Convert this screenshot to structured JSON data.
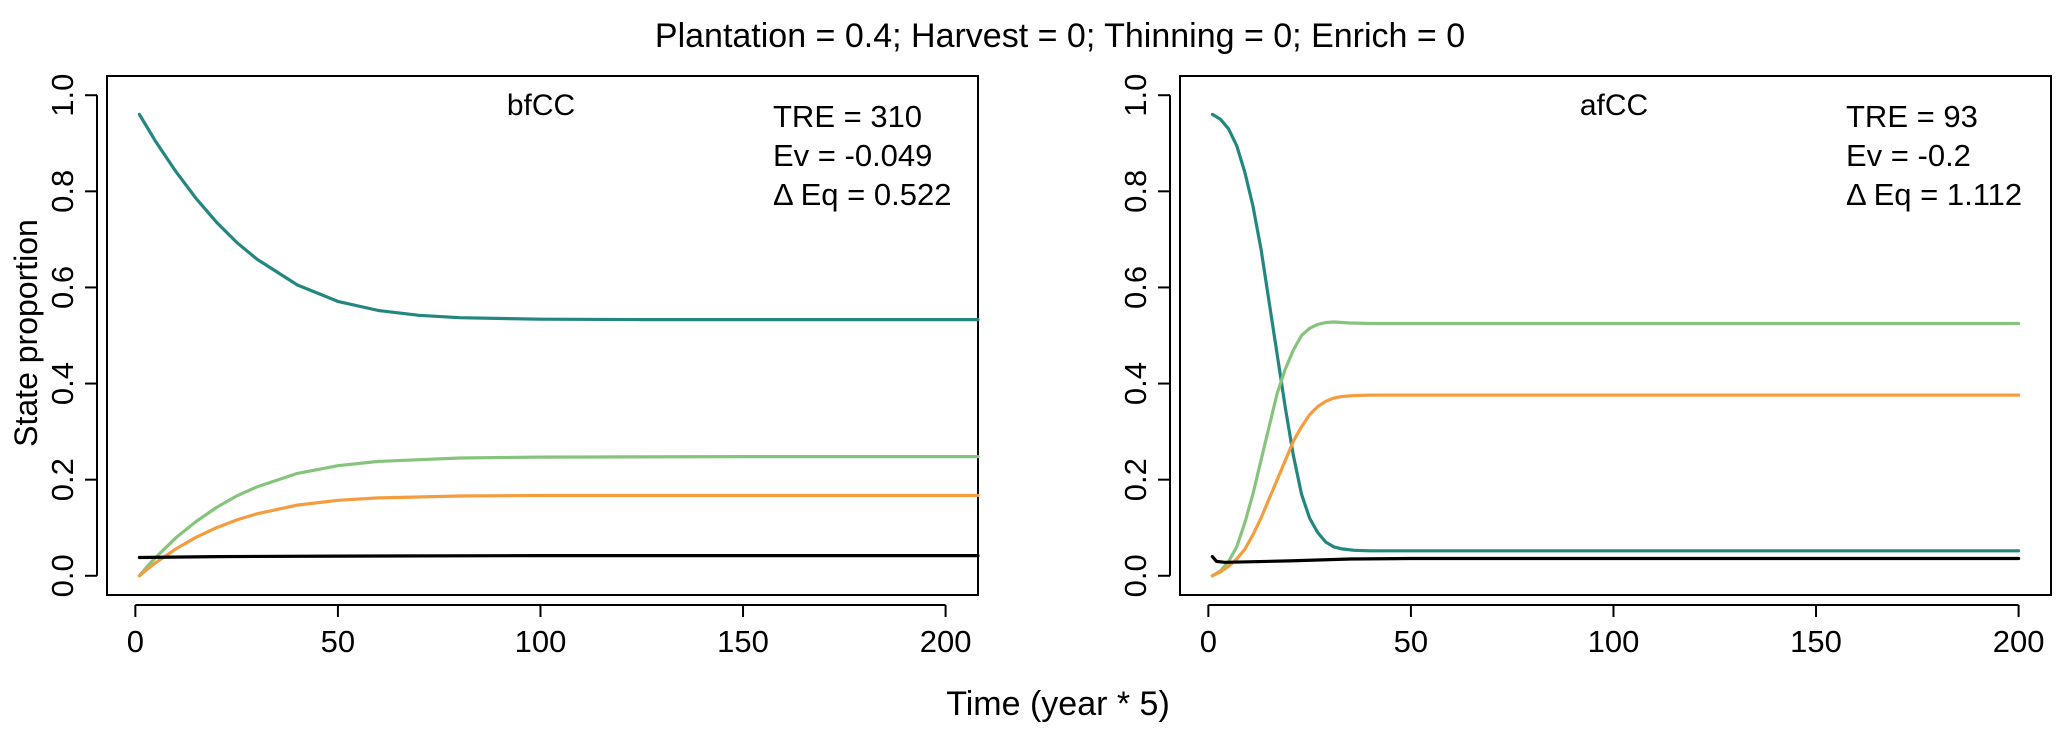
{
  "title": "Plantation = 0.4; Harvest = 0; Thinning = 0; Enrich = 0",
  "xlabel": "Time (year * 5)",
  "ylabel": "State proportion",
  "colors": {
    "teal": "#23877f",
    "green": "#86c47e",
    "orange": "#f49d3f",
    "black": "#000000"
  },
  "chart_data": [
    {
      "type": "line",
      "title": "bfCC",
      "annotations": [
        "TRE = 310",
        "Ev = -0.049",
        "Δ Eq = 0.522"
      ],
      "xlim": [
        -7,
        208
      ],
      "ylim": [
        -0.04,
        1.04
      ],
      "xticks": [
        0,
        50,
        100,
        150,
        200
      ],
      "yticks": [
        "0.0",
        "0.2",
        "0.4",
        "0.6",
        "0.8",
        "1.0"
      ],
      "series": [
        {
          "color": "teal",
          "x": [
            1,
            5,
            10,
            15,
            20,
            25,
            30,
            40,
            50,
            60,
            70,
            80,
            100,
            125,
            150,
            175,
            208
          ],
          "y": [
            0.96,
            0.904,
            0.841,
            0.785,
            0.736,
            0.694,
            0.659,
            0.605,
            0.571,
            0.552,
            0.542,
            0.537,
            0.534,
            0.533,
            0.533,
            0.533,
            0.533
          ]
        },
        {
          "color": "green",
          "x": [
            1,
            3,
            5,
            10,
            15,
            20,
            25,
            30,
            40,
            50,
            60,
            80,
            100,
            150,
            208
          ],
          "y": [
            0.0,
            0.02,
            0.038,
            0.079,
            0.113,
            0.142,
            0.166,
            0.185,
            0.213,
            0.229,
            0.238,
            0.245,
            0.247,
            0.248,
            0.248
          ]
        },
        {
          "color": "orange",
          "x": [
            1,
            3,
            5,
            10,
            15,
            20,
            25,
            30,
            40,
            50,
            60,
            80,
            100,
            150,
            208
          ],
          "y": [
            0.0,
            0.014,
            0.027,
            0.056,
            0.08,
            0.1,
            0.116,
            0.129,
            0.147,
            0.157,
            0.162,
            0.166,
            0.167,
            0.167,
            0.167
          ]
        },
        {
          "color": "black",
          "x": [
            1,
            20,
            50,
            100,
            150,
            208
          ],
          "y": [
            0.038,
            0.04,
            0.041,
            0.042,
            0.042,
            0.042
          ]
        }
      ]
    },
    {
      "type": "line",
      "title": "afCC",
      "annotations": [
        "TRE = 93",
        "Ev = -0.2",
        "Δ Eq = 1.112"
      ],
      "xlim": [
        -7,
        208
      ],
      "ylim": [
        -0.04,
        1.04
      ],
      "xticks": [
        0,
        50,
        100,
        150,
        200
      ],
      "yticks": [
        "0.0",
        "0.2",
        "0.4",
        "0.6",
        "0.8",
        "1.0"
      ],
      "series": [
        {
          "color": "teal",
          "x": [
            1,
            3,
            5,
            7,
            9,
            11,
            13,
            15,
            17,
            19,
            21,
            23,
            25,
            27,
            29,
            31,
            33,
            36,
            40,
            45,
            50,
            60,
            80,
            100,
            150,
            200
          ],
          "y": [
            0.96,
            0.95,
            0.93,
            0.895,
            0.84,
            0.77,
            0.68,
            0.57,
            0.46,
            0.35,
            0.25,
            0.17,
            0.12,
            0.09,
            0.07,
            0.06,
            0.056,
            0.053,
            0.052,
            0.052,
            0.052,
            0.052,
            0.052,
            0.052,
            0.052,
            0.052
          ]
        },
        {
          "color": "green",
          "x": [
            1,
            3,
            5,
            7,
            9,
            11,
            13,
            15,
            17,
            19,
            21,
            23,
            25,
            27,
            29,
            31,
            33,
            35,
            40,
            50,
            80,
            100,
            150,
            200
          ],
          "y": [
            0.0,
            0.01,
            0.03,
            0.06,
            0.11,
            0.17,
            0.24,
            0.31,
            0.38,
            0.43,
            0.47,
            0.5,
            0.515,
            0.523,
            0.527,
            0.528,
            0.527,
            0.526,
            0.525,
            0.525,
            0.525,
            0.525,
            0.525,
            0.525
          ]
        },
        {
          "color": "orange",
          "x": [
            1,
            3,
            5,
            7,
            9,
            11,
            13,
            15,
            17,
            19,
            21,
            23,
            25,
            27,
            29,
            31,
            33,
            36,
            40,
            45,
            50,
            60,
            80,
            100,
            150,
            200
          ],
          "y": [
            0.0,
            0.008,
            0.02,
            0.035,
            0.055,
            0.085,
            0.12,
            0.16,
            0.2,
            0.24,
            0.28,
            0.31,
            0.335,
            0.352,
            0.363,
            0.37,
            0.373,
            0.375,
            0.376,
            0.376,
            0.376,
            0.376,
            0.376,
            0.376,
            0.376,
            0.376
          ]
        },
        {
          "color": "black",
          "x": [
            1,
            2,
            4,
            10,
            20,
            35,
            50,
            100,
            150,
            200
          ],
          "y": [
            0.04,
            0.03,
            0.028,
            0.029,
            0.031,
            0.035,
            0.036,
            0.036,
            0.036,
            0.036
          ]
        }
      ]
    }
  ]
}
